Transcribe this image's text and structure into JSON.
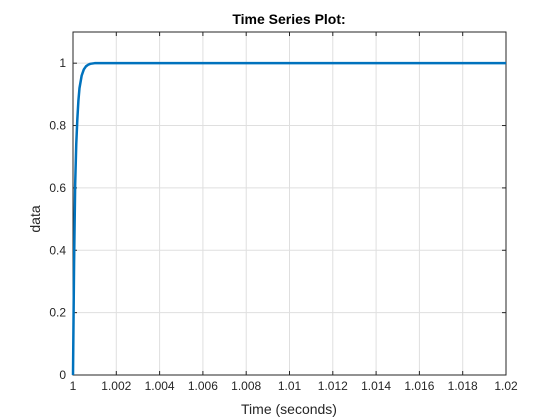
{
  "chart_data": {
    "type": "line",
    "title": "Time Series Plot:",
    "xlabel": "Time (seconds)",
    "ylabel": "data",
    "xlim": [
      1,
      1.02
    ],
    "ylim": [
      0,
      1.1
    ],
    "x_ticks": [
      1,
      1.002,
      1.004,
      1.006,
      1.008,
      1.01,
      1.012,
      1.014,
      1.016,
      1.018,
      1.02
    ],
    "x_tick_labels": [
      "1",
      "1.002",
      "1.004",
      "1.006",
      "1.008",
      "1.01",
      "1.012",
      "1.014",
      "1.016",
      "1.018",
      "1.02"
    ],
    "y_ticks": [
      0,
      0.2,
      0.4,
      0.6,
      0.8,
      1
    ],
    "y_tick_labels": [
      "0",
      "0.2",
      "0.4",
      "0.6",
      "0.8",
      "1"
    ],
    "grid": true,
    "line_color": "#0072bd",
    "series": [
      {
        "x": [
          1.0,
          1.00005,
          1.0001,
          1.00015,
          1.0002,
          1.00025,
          1.0003,
          1.0004,
          1.0005,
          1.0006,
          1.0007,
          1.0008,
          1.001,
          1.0012,
          1.0015,
          1.002,
          1.005,
          1.01,
          1.015,
          1.02
        ],
        "y": [
          0.0,
          0.36,
          0.61,
          0.74,
          0.82,
          0.88,
          0.92,
          0.96,
          0.98,
          0.99,
          0.995,
          0.998,
          1.0,
          1.0,
          1.0,
          1.0,
          1.0,
          1.0,
          1.0,
          1.0
        ]
      }
    ]
  }
}
